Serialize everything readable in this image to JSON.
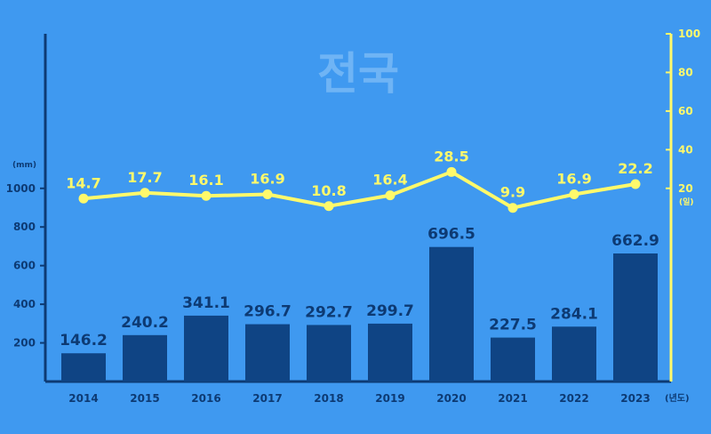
{
  "chart_data": {
    "type": "bar",
    "title": "전국",
    "categories": [
      "2014",
      "2015",
      "2016",
      "2017",
      "2018",
      "2019",
      "2020",
      "2021",
      "2022",
      "2023"
    ],
    "x_unit": "(년도)",
    "series": [
      {
        "type": "bar",
        "axis": "left",
        "values": [
          146.2,
          240.2,
          341.1,
          296.7,
          292.7,
          299.7,
          696.5,
          227.5,
          284.1,
          662.9
        ],
        "color": "#0f4484"
      },
      {
        "type": "line",
        "axis": "right",
        "values": [
          14.7,
          17.7,
          16.1,
          16.9,
          10.8,
          16.4,
          28.5,
          9.9,
          16.9,
          22.2
        ],
        "color": "#fff96b"
      }
    ],
    "y_left": {
      "unit": "(mm)",
      "ticks": [
        200,
        400,
        600,
        800,
        1000
      ],
      "ylim": [
        0,
        1800
      ]
    },
    "y_right": {
      "unit": "(일)",
      "ticks": [
        20,
        40,
        60,
        80,
        100
      ],
      "ylim": [
        -80,
        100
      ]
    },
    "colors": {
      "background": "#3f99f0",
      "bar": "#0f4484",
      "line": "#fff96b",
      "title": "#6fb4f5"
    }
  }
}
